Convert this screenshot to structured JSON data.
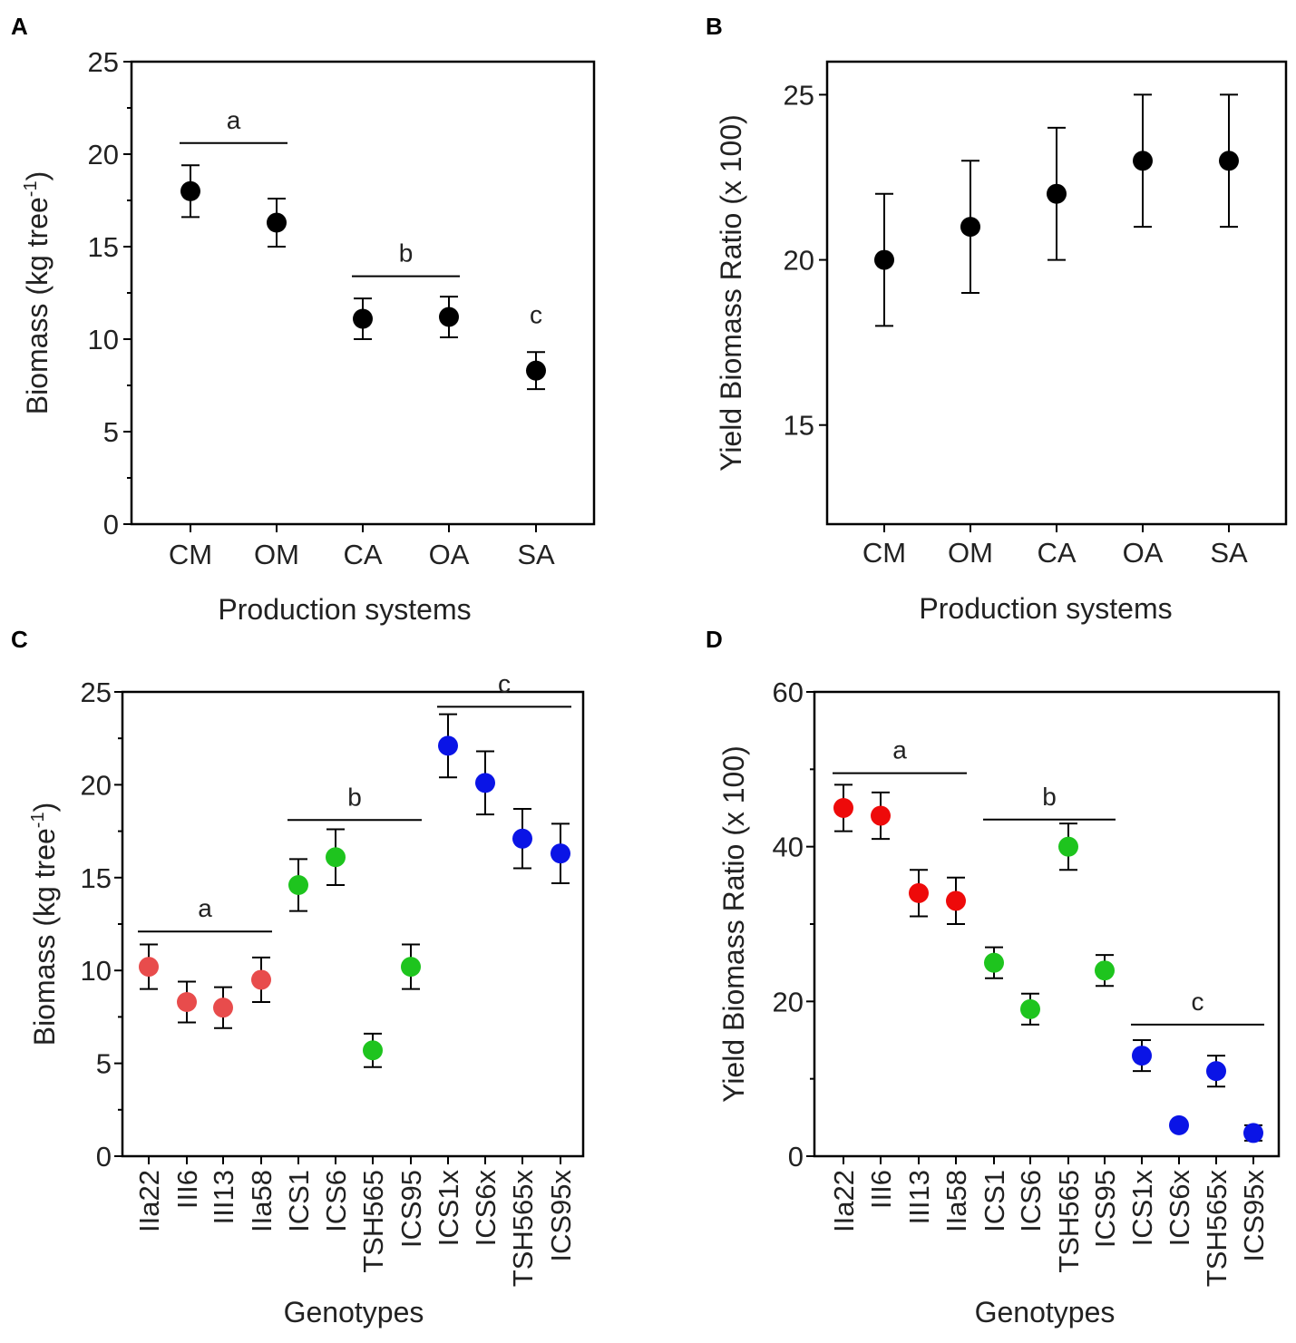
{
  "chart_data": [
    {
      "panel": "A",
      "type": "scatter",
      "categories": [
        "CM",
        "OM",
        "CA",
        "OA",
        "SA"
      ],
      "values": [
        18.0,
        16.3,
        11.1,
        11.2,
        8.3
      ],
      "errors": [
        1.4,
        1.3,
        1.1,
        1.1,
        1.0
      ],
      "colors": [
        "#000000",
        "#000000",
        "#000000",
        "#000000",
        "#000000"
      ],
      "xlabel": "Production systems",
      "ylabel": "Biomass (kg tree",
      "ylabel_sup": "-1",
      "ylabel_end": ")",
      "ylim": [
        0,
        25
      ],
      "yticks": [
        0,
        5,
        10,
        15,
        20,
        25
      ],
      "x_tick_rotation": 0,
      "groups": [
        {
          "label": "a",
          "from": 0,
          "to": 1,
          "y": 20.6
        },
        {
          "label": "b",
          "from": 2,
          "to": 3,
          "y": 13.4
        },
        {
          "label": "c",
          "from": 4,
          "to": 4,
          "y": null
        }
      ]
    },
    {
      "panel": "B",
      "type": "scatter",
      "categories": [
        "CM",
        "OM",
        "CA",
        "OA",
        "SA"
      ],
      "values": [
        20,
        21,
        22,
        23,
        23
      ],
      "errors": [
        2,
        2,
        2,
        2,
        2
      ],
      "colors": [
        "#000000",
        "#000000",
        "#000000",
        "#000000",
        "#000000"
      ],
      "xlabel": "Production systems",
      "ylabel": "Yield Biomass Ratio (x 100)",
      "ylim": [
        12,
        26
      ],
      "yticks": [
        15,
        20,
        25
      ],
      "x_tick_rotation": 0,
      "groups": []
    },
    {
      "panel": "C",
      "type": "scatter",
      "categories": [
        "IIa22",
        "III6",
        "III13",
        "IIa58",
        "ICS1",
        "ICS6",
        "TSH565",
        "ICS95",
        "ICS1x",
        "ICS6x",
        "TSH565x",
        "ICS95x"
      ],
      "values": [
        10.2,
        8.3,
        8.0,
        9.5,
        14.6,
        16.1,
        5.7,
        10.2,
        22.1,
        20.1,
        17.1,
        16.3
      ],
      "errors": [
        1.2,
        1.1,
        1.1,
        1.2,
        1.4,
        1.5,
        0.9,
        1.2,
        1.7,
        1.7,
        1.6,
        1.6
      ],
      "colors": [
        "#e84c4c",
        "#e84c4c",
        "#e84c4c",
        "#e84c4c",
        "#1ec41e",
        "#1ec41e",
        "#1ec41e",
        "#1ec41e",
        "#0a14e6",
        "#0a14e6",
        "#0a14e6",
        "#0a14e6"
      ],
      "xlabel": "Genotypes",
      "ylabel": "Biomass (kg tree",
      "ylabel_sup": "-1",
      "ylabel_end": ")",
      "ylim": [
        0,
        25
      ],
      "yticks": [
        0,
        5,
        10,
        15,
        20,
        25
      ],
      "x_tick_rotation": -90,
      "groups": [
        {
          "label": "a",
          "from": 0,
          "to": 3,
          "y": 12.1
        },
        {
          "label": "b",
          "from": 4,
          "to": 7,
          "y": 18.1
        },
        {
          "label": "c",
          "from": 8,
          "to": 11,
          "y": 24.2
        }
      ]
    },
    {
      "panel": "D",
      "type": "scatter",
      "categories": [
        "IIa22",
        "III6",
        "III13",
        "IIa58",
        "ICS1",
        "ICS6",
        "TSH565",
        "ICS95",
        "ICS1x",
        "ICS6x",
        "TSH565x",
        "ICS95x"
      ],
      "values": [
        45,
        44,
        34,
        33,
        25,
        19,
        40,
        24,
        13,
        4,
        11,
        3
      ],
      "errors": [
        3,
        3,
        3,
        3,
        2,
        2,
        3,
        2,
        2,
        0,
        2,
        1
      ],
      "colors": [
        "#ee0a0a",
        "#ee0a0a",
        "#ee0a0a",
        "#ee0a0a",
        "#1ec41e",
        "#1ec41e",
        "#1ec41e",
        "#1ec41e",
        "#0a14e6",
        "#0a14e6",
        "#0a14e6",
        "#0a14e6"
      ],
      "xlabel": "Genotypes",
      "ylabel": "Yield Biomass Ratio (x 100)",
      "ylim": [
        0,
        60
      ],
      "yticks": [
        0,
        20,
        40,
        60
      ],
      "x_tick_rotation": -90,
      "groups": [
        {
          "label": "a",
          "from": 0,
          "to": 3,
          "y": 49.5
        },
        {
          "label": "b",
          "from": 4,
          "to": 7,
          "y": 43.5
        },
        {
          "label": "c",
          "from": 8,
          "to": 11,
          "y": 17
        }
      ]
    }
  ]
}
